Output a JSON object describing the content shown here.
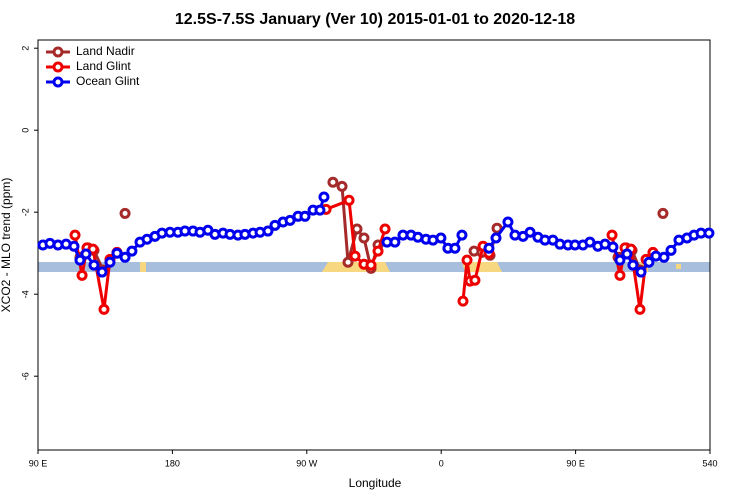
{
  "chart_data": {
    "type": "line",
    "title": "12.5S-7.5S January (Ver 10)   2015-01-01 to 2020-12-18",
    "xlabel": "Longitude",
    "ylabel": "XCO2 - MLO trend (ppm)",
    "xlim": [
      90,
      540
    ],
    "ylim": [
      -7.8,
      2.2
    ],
    "xticks": [
      {
        "value": 90,
        "label": "90 E"
      },
      180,
      {
        "value": 270,
        "label": "90 W"
      },
      {
        "value": 360,
        "label": "0"
      },
      {
        "value": 450,
        "label": "90 E"
      },
      540
    ],
    "yticks": [
      2,
      0,
      -2,
      -4,
      -6
    ],
    "legend": "upper-left",
    "series": [
      {
        "name": "Land Nadir",
        "color": "#a52a2a",
        "x": [
          118.1,
          123.5,
          127.5,
          133.5,
          null,
          148.3,
          null,
          287.5,
          293.6,
          297.6,
          303.6,
          308.3,
          313,
          317.7,
          null,
          382,
          387.3,
          392.7,
          397.4,
          null,
          478.4,
          483.8,
          487.8,
          493.1,
          null,
          508.5
        ],
        "values": [
          -3.1,
          -2.87,
          -2.93,
          -3.41,
          null,
          -2.03,
          null,
          -1.27,
          -1.37,
          -3.22,
          -2.41,
          -2.63,
          -3.37,
          -2.8,
          null,
          -2.95,
          -2.98,
          -3.05,
          -2.39,
          null,
          -3.1,
          -2.87,
          -2.93,
          -3.41,
          null,
          -2.03
        ]
      },
      {
        "name": "Land Glint",
        "color": "#ee0000",
        "x": [
          114.8,
          119.5,
          122.8,
          126.8,
          134.2,
          138.2,
          142.9,
          null,
          282.9,
          298.3,
          302.3,
          308.3,
          313,
          317.7,
          322.4,
          null,
          374.6,
          377.3,
          379.3,
          382.6,
          388,
          392,
          null,
          474.4,
          479.7,
          483.1,
          487.1,
          493.1,
          497.2,
          501.8
        ],
        "values": [
          -2.56,
          -3.54,
          -2.87,
          -2.9,
          -4.37,
          -3.15,
          -2.98,
          null,
          -1.93,
          -1.71,
          -3.07,
          -3.27,
          -3.29,
          -2.95,
          -2.41,
          null,
          -4.17,
          -3.17,
          -3.68,
          -3.66,
          -2.83,
          -3.0,
          null,
          -2.56,
          -3.54,
          -2.87,
          -2.9,
          -4.37,
          -3.15,
          -2.98
        ]
      },
      {
        "name": "Ocean Glint",
        "color": "#0000ee",
        "x": [
          93.3,
          98,
          103.4,
          108.8,
          114.1,
          118.1,
          122.1,
          127.5,
          132.9,
          138.2,
          142.9,
          148.3,
          152.9,
          158.3,
          163,
          168.3,
          173,
          178.4,
          183.7,
          188.4,
          193.8,
          198.5,
          203.8,
          208.5,
          213.9,
          218.6,
          223.9,
          228.6,
          234,
          238.7,
          244,
          248.7,
          254.1,
          258.8,
          264.1,
          268.8,
          274.2,
          278.8,
          281.5,
          null,
          323.7,
          329,
          334.4,
          339.8,
          344.4,
          349.8,
          354.5,
          359.8,
          364.5,
          369.2,
          373.9,
          null,
          392,
          396.7,
          404.7,
          409.4,
          414.8,
          419.5,
          424.8,
          429.5,
          434.8,
          439.5,
          444.9,
          449.6,
          454.9,
          459.6,
          464.9,
          469.7,
          475,
          479.7,
          484.4,
          488.4,
          493.8,
          499.1,
          503.8,
          509.2,
          513.9,
          519.2,
          524.6,
          529.3,
          534,
          539.3
        ],
        "values": [
          -2.8,
          -2.76,
          -2.8,
          -2.78,
          -2.83,
          -3.17,
          -3.02,
          -3.29,
          -3.46,
          -3.22,
          -3.0,
          -3.1,
          -2.95,
          -2.73,
          -2.66,
          -2.59,
          -2.51,
          -2.49,
          -2.49,
          -2.46,
          -2.46,
          -2.49,
          -2.44,
          -2.54,
          -2.51,
          -2.54,
          -2.56,
          -2.54,
          -2.51,
          -2.49,
          -2.46,
          -2.32,
          -2.24,
          -2.2,
          -2.1,
          -2.1,
          -1.95,
          -1.95,
          -1.63,
          null,
          -2.73,
          -2.73,
          -2.56,
          -2.56,
          -2.61,
          -2.66,
          -2.68,
          -2.63,
          -2.88,
          -2.88,
          -2.56,
          null,
          -2.88,
          -2.63,
          -2.24,
          -2.56,
          -2.59,
          -2.49,
          -2.61,
          -2.68,
          -2.68,
          -2.78,
          -2.8,
          -2.8,
          -2.8,
          -2.73,
          -2.83,
          -2.78,
          -2.85,
          -3.17,
          -3.02,
          -3.29,
          -3.46,
          -3.22,
          -3.07,
          -3.1,
          -2.93,
          -2.68,
          -2.63,
          -2.56,
          -2.51,
          -2.51
        ]
      }
    ]
  }
}
